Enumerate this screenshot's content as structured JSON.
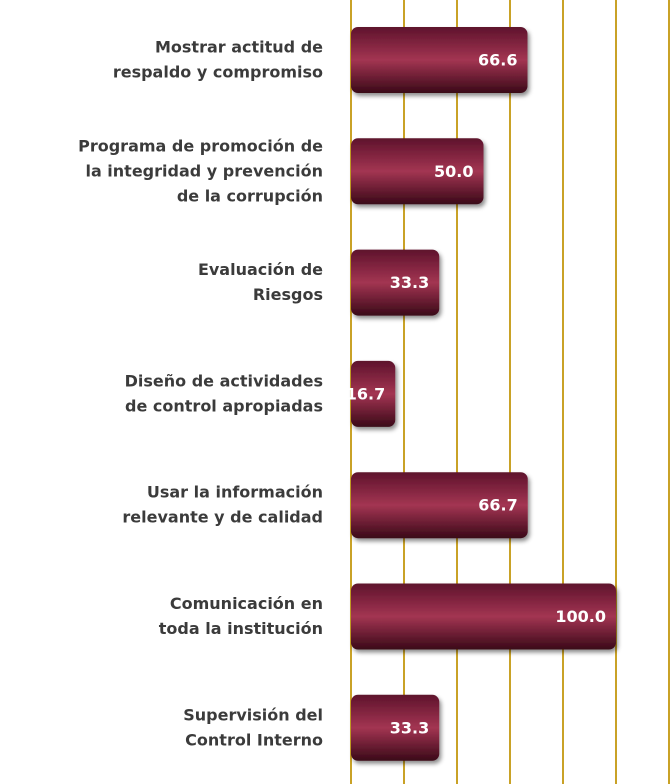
{
  "chart_data": {
    "type": "barh",
    "categories": [
      [
        "Mostrar actitud de",
        "respaldo y compromiso"
      ],
      [
        "Programa de promoción de",
        "la integridad y prevención",
        "de la corrupción"
      ],
      [
        "Evaluación de",
        "Riesgos"
      ],
      [
        "Diseño de actividades",
        "de control apropiadas"
      ],
      [
        "Usar la información",
        "relevante y de calidad"
      ],
      [
        "Comunicación en",
        "toda la institución"
      ],
      [
        "Supervisión del",
        "Control Interno"
      ]
    ],
    "values": [
      66.6,
      50.0,
      33.3,
      16.7,
      66.7,
      100.0,
      33.3
    ],
    "value_labels": [
      "66.6",
      "50.0",
      "33.3",
      "16.7",
      "66.7",
      "100.0",
      "33.3"
    ],
    "color": "#8a2342",
    "grid_color": "#c9a227",
    "xlim": [
      0,
      120
    ],
    "xticks": [
      0,
      20,
      40,
      60,
      80,
      100,
      120
    ],
    "grid": true
  }
}
